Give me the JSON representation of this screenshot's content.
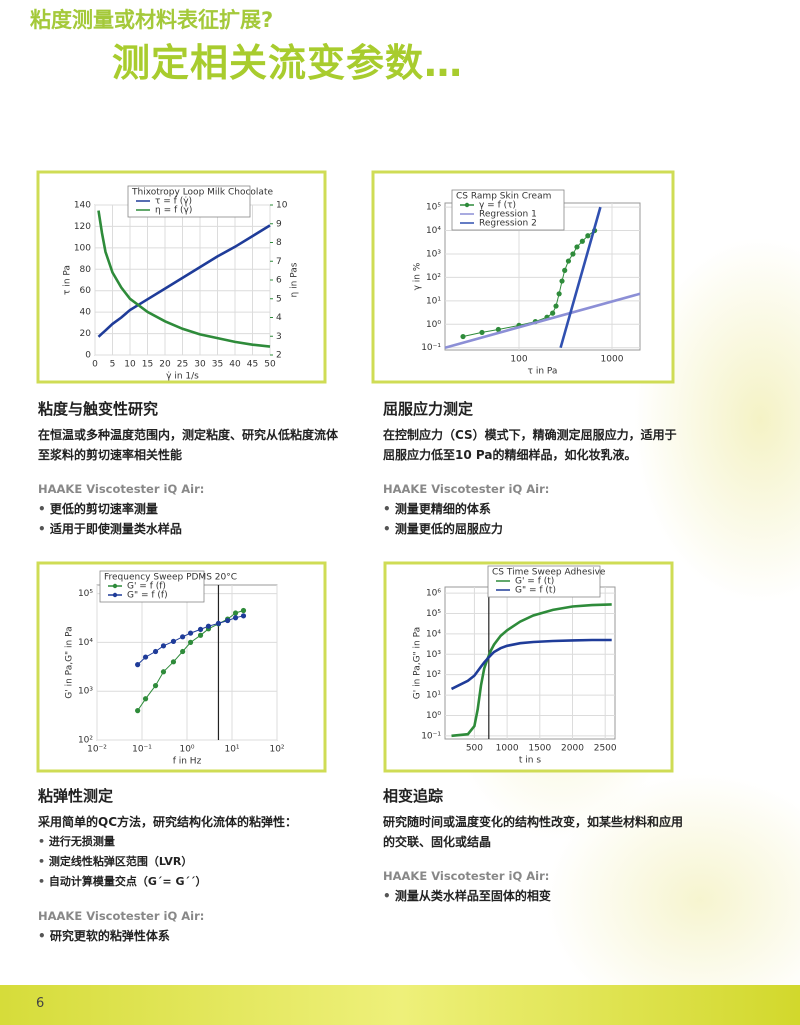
{
  "header": {
    "subtitle": "粘度测量或材料表征扩展?",
    "title": "测定相关流变参数…"
  },
  "sections": [
    {
      "heading": "粘度与触变性研究",
      "body": "在恒温或多种温度范围内，测定粘度、研究从低粘度流体至浆料的剪切速率相关性能",
      "product": "HAAKE Viscotester iQ Air:",
      "bullets": [
        "更低的剪切速率测量",
        "适用于即使测量类水样品"
      ]
    },
    {
      "heading": "屈服应力测定",
      "body": "在控制应力（CS）模式下，精确测定屈服应力，适用于屈服应力低至10 Pa的精细样品，如化妆乳液。",
      "product": "HAAKE Viscotester iQ Air:",
      "bullets": [
        "测量更精细的体系",
        "测量更低的屈服应力"
      ]
    },
    {
      "heading": "粘弹性测定",
      "body": "采用简单的QC方法，研究结构化流体的粘弹性：",
      "items": [
        "进行无损测量",
        "测定线性粘弹区范围（LVR）",
        "自动计算模量交点（G´= G´´）"
      ],
      "product": "HAAKE Viscotester iQ Air:",
      "bullets": [
        "研究更软的粘弹性体系"
      ]
    },
    {
      "heading": "相变追踪",
      "body": "研究随时间或温度变化的结构性改变，如某些材料和应用的交联、固化或结晶",
      "product": "HAAKE Viscotester iQ Air:",
      "bullets": [
        "测量从类水样品至固体的相变"
      ]
    }
  ],
  "page_number": "6",
  "chart_data": [
    {
      "type": "line",
      "title": "Thixotropy Loop Milk Chocolate",
      "x": [
        1,
        2,
        3,
        5,
        7.5,
        10,
        15,
        20,
        25,
        30,
        35,
        40,
        45,
        50
      ],
      "series": [
        {
          "name": "τ = f (γ̇)",
          "color": "#1f3c99",
          "values": [
            17,
            20,
            23,
            29,
            35,
            42,
            52,
            62,
            72,
            82,
            92,
            101,
            111,
            121
          ]
        },
        {
          "name": "η = f (γ̇)",
          "color": "#2e8b3a",
          "axis": "y2",
          "values": [
            9.7,
            8.5,
            7.5,
            6.4,
            5.6,
            5.0,
            4.3,
            3.8,
            3.4,
            3.1,
            2.9,
            2.7,
            2.55,
            2.45
          ]
        }
      ],
      "xlabel": "γ̇ in 1/s",
      "ylabel": "τ in Pa",
      "y2label": "η in Pas",
      "xlim": [
        0,
        50
      ],
      "xticks": [
        0,
        5,
        10,
        15,
        20,
        25,
        30,
        35,
        40,
        45,
        50
      ],
      "ylim": [
        0,
        140
      ],
      "yticks": [
        0,
        20,
        40,
        60,
        80,
        100,
        120,
        140
      ],
      "y2lim": [
        2,
        10
      ],
      "y2ticks": [
        2,
        3,
        4,
        5,
        6,
        7,
        8,
        9,
        10
      ],
      "grid": true,
      "legend": "upper left"
    },
    {
      "type": "line",
      "title": "CS Ramp Skin Cream",
      "xscale": "log",
      "yscale": "log",
      "series": [
        {
          "name": "γ = f (τ)",
          "color": "#2e8b3a",
          "marker": true,
          "x": [
            25,
            40,
            60,
            100,
            150,
            200,
            230,
            250,
            270,
            290,
            310,
            340,
            380,
            420,
            480,
            550,
            650
          ],
          "values": [
            0.3,
            0.45,
            0.6,
            0.9,
            1.3,
            2,
            3,
            6,
            20,
            70,
            200,
            500,
            1000,
            2000,
            3500,
            6000,
            10000
          ]
        },
        {
          "name": "Regression 1",
          "color": "#8c8fd6",
          "x": [
            16,
            2000
          ],
          "values": [
            0.1,
            20
          ]
        },
        {
          "name": "Regression 2",
          "color": "#3050b0",
          "x": [
            280,
            750
          ],
          "values": [
            0.1,
            100000
          ]
        }
      ],
      "xlabel": "τ in Pa",
      "ylabel": "γ in %",
      "xlim": [
        16,
        2000
      ],
      "xticks": [
        100,
        1000
      ],
      "ylim": [
        0.08,
        150000
      ],
      "yticks": [
        {
          "value": 0.1,
          "label": "10⁻¹"
        },
        {
          "value": 1,
          "label": "10⁰"
        },
        {
          "value": 10,
          "label": "10¹"
        },
        {
          "value": 100,
          "label": "10²"
        },
        {
          "value": 1000,
          "label": "10³"
        },
        {
          "value": 10000,
          "label": "10⁴"
        },
        {
          "value": 100000,
          "label": "10⁵"
        }
      ],
      "grid": true,
      "legend": "upper left"
    },
    {
      "type": "line",
      "title": "Frequency Sweep PDMS 20°C",
      "xscale": "log",
      "yscale": "log",
      "x": [
        0.08,
        0.12,
        0.2,
        0.3,
        0.5,
        0.8,
        1.2,
        2,
        3,
        5,
        8,
        12,
        18
      ],
      "series": [
        {
          "name": "G' = f (f)",
          "color": "#2e8b3a",
          "marker": true,
          "values": [
            400,
            700,
            1300,
            2500,
            4000,
            6500,
            10000,
            14000,
            19000,
            24000,
            30000,
            40000,
            45000
          ]
        },
        {
          "name": "G\" = f (f)",
          "color": "#1f3c99",
          "marker": true,
          "values": [
            3500,
            5000,
            6500,
            8500,
            10500,
            13000,
            15500,
            18500,
            21500,
            24500,
            28000,
            32000,
            35000
          ]
        }
      ],
      "vline": 5,
      "xlabel": "f in Hz",
      "ylabel": "G' in Pa,G\" in Pa",
      "xlim": [
        0.01,
        100
      ],
      "xticks": [
        {
          "value": 0.01,
          "label": "10⁻²"
        },
        {
          "value": 0.1,
          "label": "10⁻¹"
        },
        {
          "value": 1,
          "label": "10⁰"
        },
        {
          "value": 10,
          "label": "10¹"
        },
        {
          "value": 100,
          "label": "10²"
        }
      ],
      "ylim": [
        100,
        150000
      ],
      "yticks": [
        {
          "value": 100,
          "label": "10²"
        },
        {
          "value": 1000,
          "label": "10³"
        },
        {
          "value": 10000,
          "label": "10⁴"
        },
        {
          "value": 100000,
          "label": "10⁵"
        }
      ],
      "grid": true,
      "legend": "upper left"
    },
    {
      "type": "line",
      "title": "CS Time Sweep Adhesive",
      "yscale": "log",
      "x": [
        150,
        400,
        500,
        550,
        600,
        650,
        700,
        750,
        800,
        900,
        1000,
        1200,
        1400,
        1700,
        2000,
        2300,
        2600
      ],
      "series": [
        {
          "name": "G' = f (t)",
          "color": "#2e8b3a",
          "values": [
            0.1,
            0.12,
            0.3,
            2,
            30,
            200,
            600,
            1500,
            3000,
            8000,
            15000,
            40000,
            80000,
            150000,
            220000,
            260000,
            280000
          ]
        },
        {
          "name": "G\" = f (t)",
          "color": "#1f3c99",
          "values": [
            20,
            50,
            90,
            150,
            250,
            400,
            600,
            900,
            1300,
            2000,
            2600,
            3500,
            4000,
            4500,
            4800,
            5000,
            5000
          ]
        }
      ],
      "vline": 720,
      "xlabel": "t in s",
      "ylabel": "G' in Pa,G\" in Pa",
      "xlim": [
        50,
        2650
      ],
      "xticks": [
        500,
        1000,
        1500,
        2000,
        2500
      ],
      "ylim": [
        0.07,
        2000000
      ],
      "yticks": [
        {
          "value": 0.1,
          "label": "10⁻¹"
        },
        {
          "value": 1,
          "label": "10⁰"
        },
        {
          "value": 10,
          "label": "10¹"
        },
        {
          "value": 100,
          "label": "10²"
        },
        {
          "value": 1000,
          "label": "10³"
        },
        {
          "value": 10000,
          "label": "10⁴"
        },
        {
          "value": 100000,
          "label": "10⁵"
        },
        {
          "value": 1000000,
          "label": "10⁶"
        }
      ],
      "grid": true,
      "legend": "upper left"
    }
  ]
}
